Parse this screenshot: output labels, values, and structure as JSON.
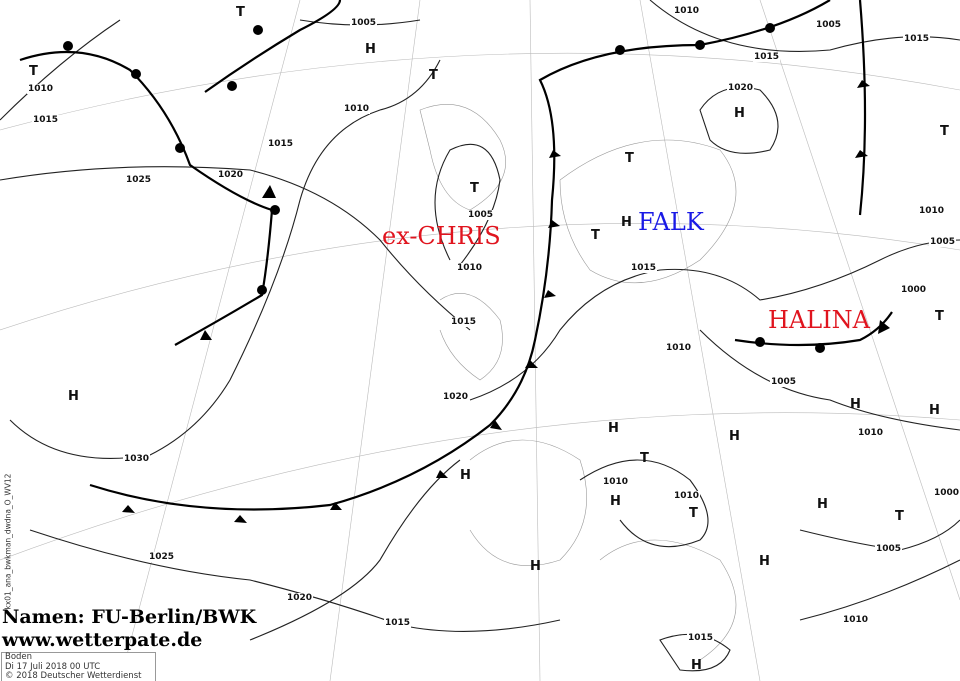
{
  "credits": {
    "names": "Namen: FU-Berlin/BWK",
    "site": "www.wetterpate.de"
  },
  "infobox": {
    "level": "Boden",
    "datetime": "Di 17 Juli 2018 00 UTC",
    "copyright": "© 2018 Deutscher Wetterdienst"
  },
  "side_code": "kx01_ana_bwkman_dwdna_O_WV12",
  "storms": [
    {
      "name": "ex-CHRIS",
      "color": "#e0141e"
    },
    {
      "name": "FALK",
      "color": "#1a1ae6"
    },
    {
      "name": "HALINA",
      "color": "#e0141e"
    }
  ],
  "isobar_labels": [
    "1005",
    "1010",
    "1015",
    "1020",
    "1025",
    "1030",
    "1025",
    "1020",
    "1015",
    "1010",
    "1005",
    "1015",
    "1020",
    "1010",
    "1015",
    "1020",
    "1015",
    "1010",
    "1005",
    "1010",
    "1010",
    "1010",
    "1010",
    "1005",
    "1000",
    "1000",
    "1005",
    "1010",
    "1015",
    "1005",
    "1015",
    "1010",
    "1015"
  ],
  "pressure_centers": [
    "H",
    "H",
    "H",
    "H",
    "H",
    "H",
    "H",
    "H",
    "H",
    "H",
    "H",
    "H",
    "H",
    "H",
    "T",
    "T",
    "T",
    "T",
    "T",
    "T",
    "T",
    "T",
    "T",
    "T",
    "T"
  ]
}
